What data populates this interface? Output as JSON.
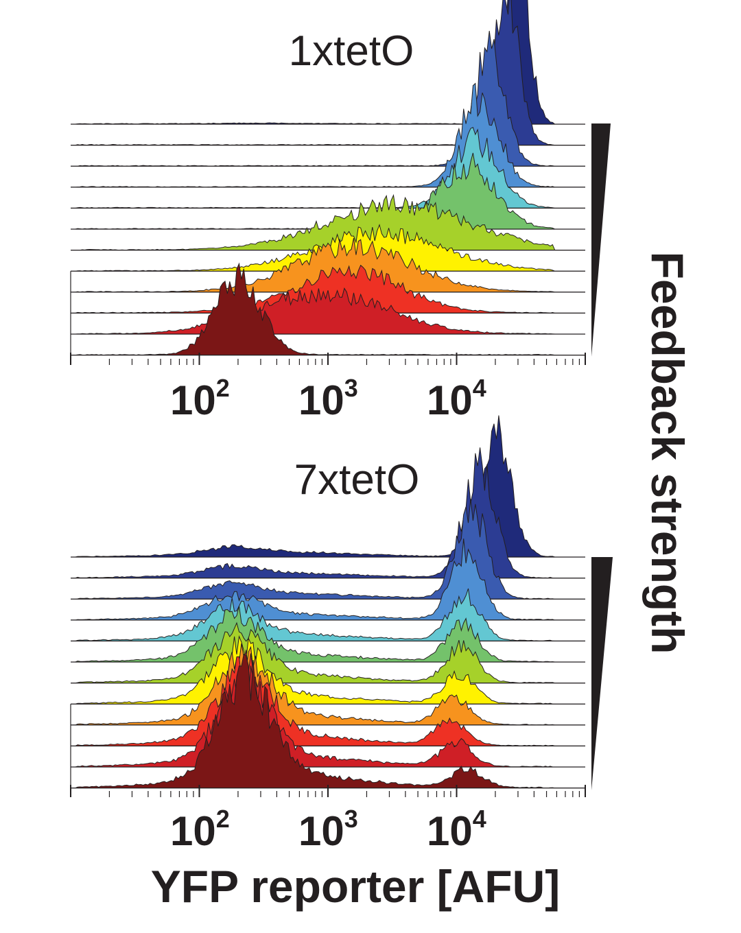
{
  "figure": {
    "side_label": "Feedback strength",
    "xlabel": "YFP reporter [AFU]"
  },
  "chart_data": [
    {
      "type": "area",
      "title": "1xtetO",
      "xlabel": "",
      "xscale": "log",
      "xlim": [
        10,
        100000
      ],
      "xticks": [
        {
          "base": "10",
          "exp": "2",
          "value": 100
        },
        {
          "base": "10",
          "exp": "3",
          "value": 1000
        },
        {
          "base": "10",
          "exp": "4",
          "value": 10000
        }
      ],
      "grid": false,
      "stacking": "ridgeline, lowest feedback at bottom",
      "series_color_order": [
        "#7b1616",
        "#cf1f26",
        "#ee3124",
        "#f7931e",
        "#fff200",
        "#a6d12a",
        "#74c26b",
        "#63c7d2",
        "#4f8fd3",
        "#3a5bb0",
        "#2c3c93",
        "#1f2a7a"
      ],
      "series": [
        {
          "level": 1,
          "color": "#7b1616",
          "peak_x": 200,
          "peak_height": 1.0,
          "spread_decades": 0.18,
          "low_fraction": 0
        },
        {
          "level": 2,
          "color": "#cf1f26",
          "peak_x": 1200,
          "peak_height": 0.45,
          "spread_decades": 0.45,
          "low_fraction": 0.5
        },
        {
          "level": 3,
          "color": "#ee3124",
          "peak_x": 1500,
          "peak_height": 0.55,
          "spread_decades": 0.4,
          "low_fraction": 0.08
        },
        {
          "level": 4,
          "color": "#f7931e",
          "peak_x": 1600,
          "peak_height": 0.6,
          "spread_decades": 0.45,
          "low_fraction": 0
        },
        {
          "level": 5,
          "color": "#fff200",
          "peak_x": 2500,
          "peak_height": 0.5,
          "spread_decades": 0.5,
          "low_fraction": 0
        },
        {
          "level": 6,
          "color": "#a6d12a",
          "peak_x": 3500,
          "peak_height": 0.6,
          "spread_decades": 0.55,
          "low_fraction": 0
        },
        {
          "level": 7,
          "color": "#74c26b",
          "peak_x": 12000,
          "peak_height": 0.85,
          "spread_decades": 0.22,
          "low_fraction": 0
        },
        {
          "level": 8,
          "color": "#63c7d2",
          "peak_x": 14000,
          "peak_height": 0.9,
          "spread_decades": 0.18,
          "low_fraction": 0
        },
        {
          "level": 9,
          "color": "#4f8fd3",
          "peak_x": 15000,
          "peak_height": 1.2,
          "spread_decades": 0.15,
          "low_fraction": 0
        },
        {
          "level": 10,
          "color": "#3a5bb0",
          "peak_x": 18000,
          "peak_height": 1.5,
          "spread_decades": 0.12,
          "low_fraction": 0
        },
        {
          "level": 11,
          "color": "#2c3c93",
          "peak_x": 24000,
          "peak_height": 2.0,
          "spread_decades": 0.1,
          "low_fraction": 0
        },
        {
          "level": 12,
          "color": "#1f2a7a",
          "peak_x": 29000,
          "peak_height": 2.4,
          "spread_decades": 0.09,
          "low_fraction": 0.02
        }
      ]
    },
    {
      "type": "area",
      "title": "7xtetO",
      "xlabel": "YFP reporter [AFU]",
      "xscale": "log",
      "xlim": [
        10,
        100000
      ],
      "xticks": [
        {
          "base": "10",
          "exp": "2",
          "value": 100
        },
        {
          "base": "10",
          "exp": "3",
          "value": 1000
        },
        {
          "base": "10",
          "exp": "4",
          "value": 10000
        }
      ],
      "grid": false,
      "stacking": "ridgeline, lowest feedback at bottom",
      "series": [
        {
          "level": 1,
          "color": "#7b1616",
          "low_x": 200,
          "high_x": 12000,
          "low_fraction": 1.0,
          "peak_height": 1.3
        },
        {
          "level": 2,
          "color": "#cf1f26",
          "low_x": 200,
          "high_x": 10000,
          "low_fraction": 0.75,
          "peak_height": 1.1
        },
        {
          "level": 3,
          "color": "#ee3124",
          "low_x": 200,
          "high_x": 9000,
          "low_fraction": 0.7,
          "peak_height": 1.1
        },
        {
          "level": 4,
          "color": "#f7931e",
          "low_x": 200,
          "high_x": 9500,
          "low_fraction": 0.6,
          "peak_height": 1.0
        },
        {
          "level": 5,
          "color": "#fff200",
          "low_x": 180,
          "high_x": 10500,
          "low_fraction": 0.5,
          "peak_height": 1.0
        },
        {
          "level": 6,
          "color": "#a6d12a",
          "low_x": 180,
          "high_x": 11000,
          "low_fraction": 0.45,
          "peak_height": 1.2
        },
        {
          "level": 7,
          "color": "#74c26b",
          "low_x": 170,
          "high_x": 11000,
          "low_fraction": 0.4,
          "peak_height": 1.2
        },
        {
          "level": 8,
          "color": "#63c7d2",
          "low_x": 160,
          "high_x": 11500,
          "low_fraction": 0.3,
          "peak_height": 1.3
        },
        {
          "level": 9,
          "color": "#4f8fd3",
          "low_x": 160,
          "high_x": 12000,
          "low_fraction": 0.2,
          "peak_height": 1.8
        },
        {
          "level": 10,
          "color": "#3a5bb0",
          "low_x": 160,
          "high_x": 13000,
          "low_fraction": 0.12,
          "peak_height": 2.2
        },
        {
          "level": 11,
          "color": "#2c3c93",
          "low_x": 160,
          "high_x": 15000,
          "low_fraction": 0.08,
          "peak_height": 2.6
        },
        {
          "level": 12,
          "color": "#1f2a7a",
          "low_x": 160,
          "high_x": 20000,
          "low_fraction": 0.06,
          "peak_height": 2.8
        }
      ]
    }
  ]
}
